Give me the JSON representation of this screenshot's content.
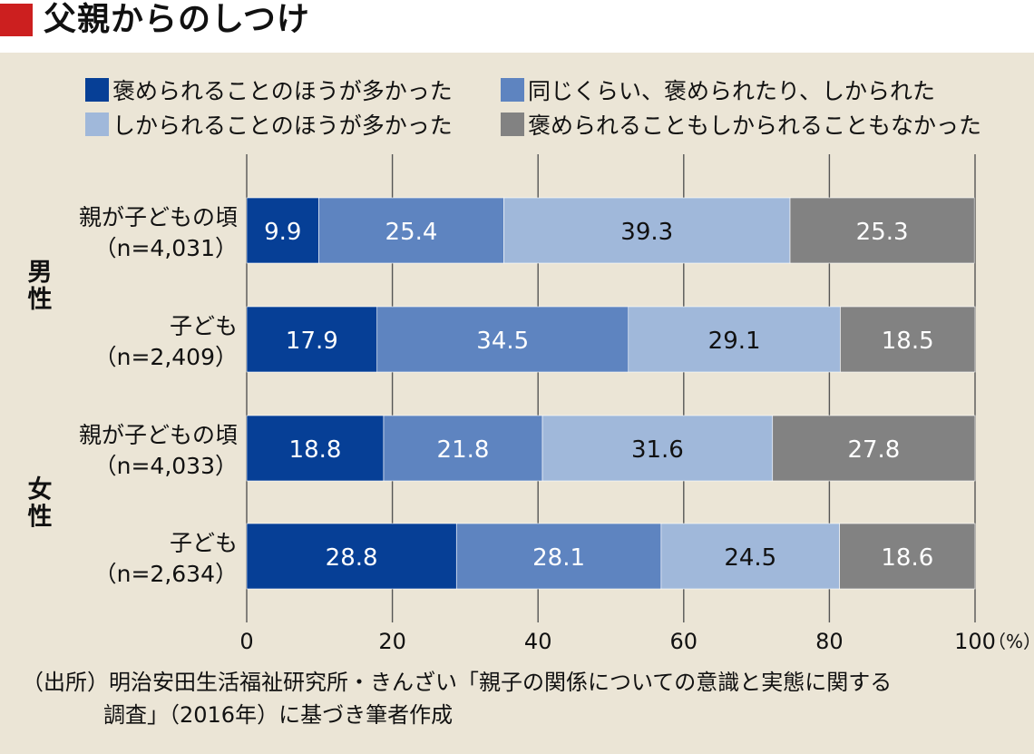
{
  "title": "父親からのしつけ",
  "colors": {
    "accent": "#cc1f1f",
    "praised_more": "#063f96",
    "same": "#5e84c0",
    "scolded_more": "#a0b8da",
    "neither": "#828282",
    "panel_bg": "#ebe5d6",
    "grid": "#555555"
  },
  "chart_data": {
    "type": "bar",
    "orientation": "horizontal",
    "stacked": true,
    "xlim": [
      0,
      100
    ],
    "x_ticks": [
      "0",
      "20",
      "40",
      "60",
      "80",
      "100"
    ],
    "x_unit": "（%）",
    "grid": true,
    "legend_position": "top",
    "groups": [
      {
        "label": "男性",
        "rows": [
          0,
          1
        ]
      },
      {
        "label": "女性",
        "rows": [
          2,
          3
        ]
      }
    ],
    "categories": [
      {
        "line1": "親が子どもの頃",
        "line2": "（n=4,031）"
      },
      {
        "line1": "子ども",
        "line2": "（n=2,409）"
      },
      {
        "line1": "親が子どもの頃",
        "line2": "（n=4,033）"
      },
      {
        "line1": "子ども",
        "line2": "（n=2,634）"
      }
    ],
    "series": [
      {
        "name": "褒められることのほうが多かった",
        "color": "#063f96",
        "text_color": "#ffffff",
        "values": [
          9.9,
          17.9,
          18.8,
          28.8
        ]
      },
      {
        "name": "同じくらい、褒められたり、しかられた",
        "color": "#5e84c0",
        "text_color": "#ffffff",
        "values": [
          25.4,
          34.5,
          21.8,
          28.1
        ]
      },
      {
        "name": "しかられることのほうが多かった",
        "color": "#a0b8da",
        "text_color": "#111111",
        "values": [
          39.3,
          29.1,
          31.6,
          24.5
        ]
      },
      {
        "name": "褒められることもしかられることもなかった",
        "color": "#828282",
        "text_color": "#ffffff",
        "values": [
          25.3,
          18.5,
          27.8,
          18.6
        ]
      }
    ]
  },
  "source": {
    "line1": "（出所）明治安田生活福祉研究所・きんざい「親子の関係についての意識と実態に関する",
    "line2": "調査」（2016年）に基づき筆者作成"
  }
}
